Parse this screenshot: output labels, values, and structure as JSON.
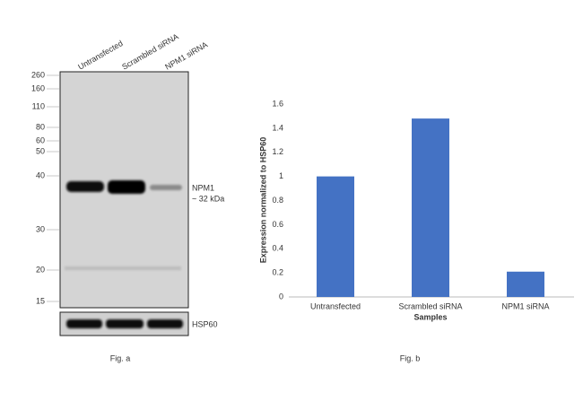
{
  "blot": {
    "lanes": [
      "Untransfected",
      "Scrambled siRNA",
      "NPM1 siRNA"
    ],
    "markers": [
      260,
      160,
      110,
      80,
      60,
      50,
      40,
      30,
      20,
      15
    ],
    "target": "NPM1",
    "target_size": "~ 32 kDa",
    "control": "HSP60",
    "caption": "Fig. a"
  },
  "chart_data": {
    "type": "bar",
    "caption": "Fig. b",
    "ylabel": "Expression normalized to HSP60",
    "xlabel": "Samples",
    "categories": [
      "Untransfected",
      "Scrambled siRNA",
      "NPM1 siRNA"
    ],
    "values": [
      1,
      1.48,
      0.21
    ],
    "color": "#4472c4",
    "ylim": [
      0,
      1.6
    ],
    "yticks": [
      0,
      0.2,
      0.4,
      0.6,
      0.8,
      1,
      1.2,
      1.4,
      1.6
    ],
    "grid": false
  }
}
